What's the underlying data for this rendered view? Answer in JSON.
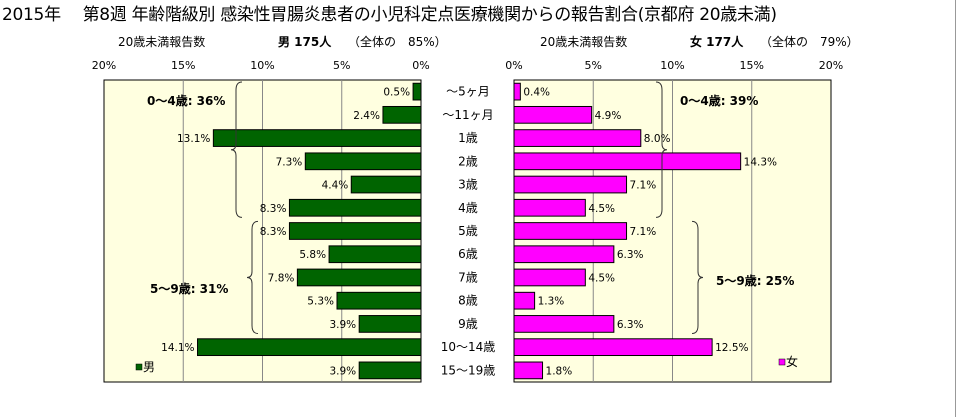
{
  "title": "2015年　 第8週 年齢階級別 感染性胃腸炎患者の小児科定点医療機関からの報告割合(京都府 20歳未満)",
  "male_header": {
    "count_label": "20歳未満報告数",
    "sex_count": "男 175人",
    "ratio": "（全体の　85%）"
  },
  "female_header": {
    "count_label": "20歳未満報告数",
    "sex_count": "女 177人",
    "ratio": "（全体の　79%）"
  },
  "chart_data": {
    "type": "bar",
    "orientation": "horizontal-butterfly",
    "categories": [
      "～5ヶ月",
      "～11ヶ月",
      "1歳",
      "2歳",
      "3歳",
      "4歳",
      "5歳",
      "6歳",
      "7歳",
      "8歳",
      "9歳",
      "10～14歳",
      "15～19歳"
    ],
    "series": [
      {
        "name": "男",
        "color": "#006400",
        "values": [
          0.5,
          2.4,
          13.1,
          7.3,
          4.4,
          8.3,
          8.3,
          5.8,
          7.8,
          5.3,
          3.9,
          14.1,
          3.9
        ],
        "labels": [
          "0.5%",
          "2.4%",
          "13.1%",
          "7.3%",
          "4.4%",
          "8.3%",
          "8.3%",
          "5.8%",
          "7.8%",
          "5.3%",
          "3.9%",
          "14.1%",
          "3.9%"
        ]
      },
      {
        "name": "女",
        "color": "#ff00ff",
        "values": [
          0.4,
          4.9,
          8.0,
          14.3,
          7.1,
          4.5,
          7.1,
          6.3,
          4.5,
          1.3,
          6.3,
          12.5,
          1.8
        ],
        "labels": [
          "0.4%",
          "4.9%",
          "8.0%",
          "14.3%",
          "7.1%",
          "4.5%",
          "7.1%",
          "6.3%",
          "4.5%",
          "1.3%",
          "6.3%",
          "12.5%",
          "1.8%"
        ]
      }
    ],
    "male_ticks": [
      "20%",
      "15%",
      "10%",
      "5%",
      "0%"
    ],
    "female_ticks": [
      "0%",
      "5%",
      "10%",
      "15%",
      "20%"
    ],
    "xlim": [
      0,
      20
    ],
    "plot_background": "#ffffe0",
    "grid": true,
    "annotations": {
      "male_0_4": "0～4歳: 36%",
      "male_5_9": "5～9歳: 31%",
      "female_0_4": "0～4歳: 39%",
      "female_5_9": "5～9歳: 25%"
    },
    "legend_male": "男",
    "legend_female": "女"
  }
}
